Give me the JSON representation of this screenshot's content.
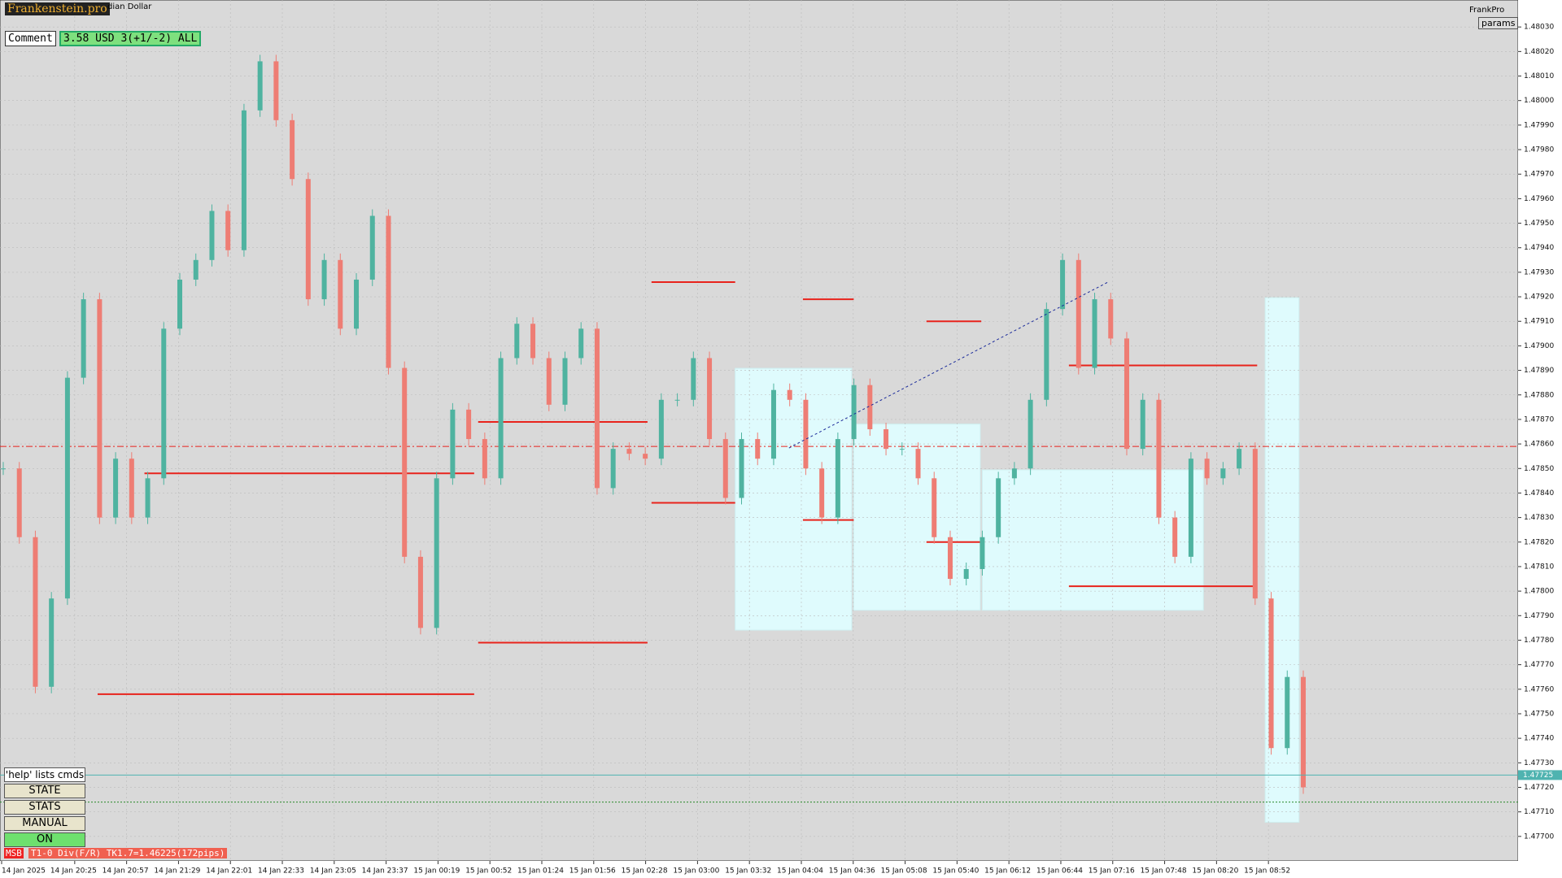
{
  "header": {
    "brand": "Frankenstein.pro",
    "symbol_fragment": "dian Dollar",
    "panel_name": "FrankPro",
    "params_button": "params"
  },
  "comment": {
    "label": "Comment",
    "text": "3.58 USD 3(+1/-2) ALL"
  },
  "controls": {
    "help": "'help' lists cmds",
    "buttons": [
      "STATE",
      "STATS",
      "MANUAL",
      "ON"
    ],
    "status_tag": "MSB",
    "status": "T1-0  Div(F/R) TK1.7=1.46225(172pips)"
  },
  "chart_data": {
    "type": "candlestick",
    "values": [
      1.4785,
      1.47822,
      1.47761,
      1.47797,
      1.47887,
      1.47919,
      1.4783,
      1.47854,
      1.4783,
      1.47846,
      1.47907,
      1.47927,
      1.47935,
      1.47955,
      1.47939,
      1.47996,
      1.48016,
      1.47992,
      1.47968,
      1.47919,
      1.47935,
      1.47907,
      1.47927,
      1.47953,
      1.47891,
      1.47814,
      1.47785,
      1.47846,
      1.47874,
      1.47862,
      1.47846,
      1.47895,
      1.47909,
      1.47895,
      1.47876,
      1.47895,
      1.47907,
      1.47842,
      1.47858,
      1.47856,
      1.47854,
      1.47878,
      1.47878,
      1.47895,
      1.47862,
      1.47838,
      1.47862,
      1.47854,
      1.47882,
      1.47878,
      1.4785,
      1.4783,
      1.47862,
      1.47884,
      1.47866,
      1.47858,
      1.47858,
      1.47846,
      1.47822,
      1.47805,
      1.47809,
      1.47822,
      1.47846,
      1.4785,
      1.47878,
      1.47915,
      1.47935,
      1.47891,
      1.47919,
      1.47903,
      1.47858,
      1.47878,
      1.4783,
      1.47814,
      1.47854,
      1.47846,
      1.4785,
      1.47858,
      1.47797,
      1.47736,
      1.47765,
      1.4772
    ],
    "ylim": [
      1.4769,
      1.48041
    ],
    "yticks": [
      {
        "value": 1.477,
        "label": "1.47700"
      },
      {
        "value": 1.4771,
        "label": "1.47710"
      },
      {
        "value": 1.4772,
        "label": "1.47720"
      },
      {
        "value": 1.4773,
        "label": "1.47730"
      },
      {
        "value": 1.4774,
        "label": "1.47740"
      },
      {
        "value": 1.4775,
        "label": "1.47750"
      },
      {
        "value": 1.4776,
        "label": "1.47760"
      },
      {
        "value": 1.4777,
        "label": "1.47770"
      },
      {
        "value": 1.4778,
        "label": "1.47780"
      },
      {
        "value": 1.4779,
        "label": "1.47790"
      },
      {
        "value": 1.478,
        "label": "1.47800"
      },
      {
        "value": 1.4781,
        "label": "1.47810"
      },
      {
        "value": 1.4782,
        "label": "1.47820"
      },
      {
        "value": 1.4783,
        "label": "1.47830"
      },
      {
        "value": 1.4784,
        "label": "1.47840"
      },
      {
        "value": 1.4785,
        "label": "1.47850"
      },
      {
        "value": 1.4786,
        "label": "1.47860"
      },
      {
        "value": 1.4787,
        "label": "1.47870"
      },
      {
        "value": 1.4788,
        "label": "1.47880"
      },
      {
        "value": 1.4789,
        "label": "1.47890"
      },
      {
        "value": 1.479,
        "label": "1.47900"
      },
      {
        "value": 1.4791,
        "label": "1.47910"
      },
      {
        "value": 1.4792,
        "label": "1.47920"
      },
      {
        "value": 1.4793,
        "label": "1.47930"
      },
      {
        "value": 1.4794,
        "label": "1.47940"
      },
      {
        "value": 1.4795,
        "label": "1.47950"
      },
      {
        "value": 1.4796,
        "label": "1.47960"
      },
      {
        "value": 1.4797,
        "label": "1.47970"
      },
      {
        "value": 1.4798,
        "label": "1.47980"
      },
      {
        "value": 1.4799,
        "label": "1.47990"
      },
      {
        "value": 1.48,
        "label": "1.48000"
      },
      {
        "value": 1.4801,
        "label": "1.48010"
      },
      {
        "value": 1.4802,
        "label": "1.48020"
      },
      {
        "value": 1.4803,
        "label": "1.48030"
      }
    ],
    "x_labels": [
      "14 Jan 2025",
      "14 Jan 20:25",
      "14 Jan 20:57",
      "14 Jan 21:29",
      "14 Jan 22:01",
      "14 Jan 22:33",
      "14 Jan 23:05",
      "14 Jan 23:37",
      "15 Jan 00:19",
      "15 Jan 00:52",
      "15 Jan 01:24",
      "15 Jan 01:56",
      "15 Jan 02:28",
      "15 Jan 03:00",
      "15 Jan 03:32",
      "15 Jan 04:04",
      "15 Jan 04:36",
      "15 Jan 05:08",
      "15 Jan 05:40",
      "15 Jan 06:12",
      "15 Jan 06:44",
      "15 Jan 07:16",
      "15 Jan 07:48",
      "15 Jan 08:20",
      "15 Jan 08:52"
    ],
    "current_price": {
      "value": 1.47725,
      "label": "1.47725"
    },
    "levels": [
      1.47758,
      1.47848,
      1.47779,
      1.47869,
      1.47926,
      1.47836,
      1.47919,
      1.47829,
      1.4791,
      1.4782,
      1.47892,
      1.47802
    ],
    "reference_lines": [
      1.47859,
      1.47714
    ],
    "grid": true,
    "up_color": "#4fb3a0",
    "down_color": "#ee7d74",
    "level_color": "#e8231c"
  }
}
